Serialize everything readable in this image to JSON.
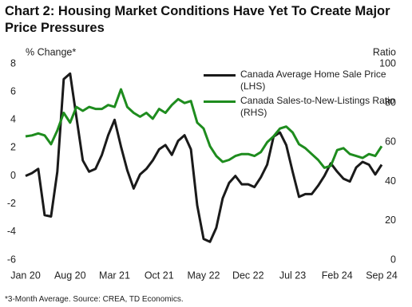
{
  "chart_data": {
    "type": "line",
    "title": "Chart 2: Housing Market Conditions Have Yet To Create Major Price Pressures",
    "ylabel": "% Change*",
    "y2label": "Ratio",
    "footnote": "*3-Month Average.  Source: CREA, TD Economics.",
    "categories": [
      "Jan 20",
      null,
      null,
      null,
      null,
      null,
      null,
      "Aug 20",
      null,
      null,
      null,
      null,
      null,
      null,
      "Mar 21",
      null,
      null,
      null,
      null,
      null,
      null,
      "Oct 21",
      null,
      null,
      null,
      null,
      null,
      null,
      "May 22",
      null,
      null,
      null,
      null,
      null,
      null,
      "Dec 22",
      null,
      null,
      null,
      null,
      null,
      null,
      "Jul 23",
      null,
      null,
      null,
      null,
      null,
      null,
      "Feb 24",
      null,
      null,
      null,
      null,
      null,
      null,
      "Sep 24"
    ],
    "ylim": [
      -6,
      8
    ],
    "yticks": [
      -6,
      -4,
      -2,
      0,
      2,
      4,
      6,
      8
    ],
    "y2lim": [
      0,
      100
    ],
    "y2ticks": [
      0,
      20,
      40,
      60,
      80,
      100
    ],
    "series": [
      {
        "name": "Canada Average Home Sale Price (LHS)",
        "color": "#1a1a1a",
        "values": [
          0,
          0.2,
          0.5,
          -2.8,
          -2.9,
          0.3,
          6.9,
          7.3,
          4.2,
          1.1,
          0.3,
          0.5,
          1.5,
          2.9,
          4.0,
          2.1,
          0.4,
          -0.9,
          0.1,
          0.5,
          1.1,
          1.9,
          2.2,
          1.5,
          2.5,
          2.9,
          1.9,
          -2.1,
          -4.5,
          -4.7,
          -3.7,
          -1.6,
          -0.5,
          0,
          -0.6,
          -0.6,
          -0.8,
          -0.1,
          0.8,
          2.8,
          3.1,
          2.2,
          0.3,
          -1.5,
          -1.3,
          -1.3,
          -0.7,
          0,
          0.9,
          0.3,
          -0.2,
          -0.4,
          0.6,
          1.0,
          0.8,
          0.1,
          0.8
        ]
      },
      {
        "name": "Canada Sales-to-New-Listings Ratio (RHS)",
        "color": "#1e8c1e",
        "axis": "y2",
        "values": [
          63,
          63.5,
          64.5,
          63.5,
          59,
          66,
          75,
          70,
          78,
          76,
          78,
          77,
          77,
          79,
          78,
          87,
          78,
          75,
          73,
          75,
          72,
          77,
          75,
          79,
          82,
          80,
          81,
          70,
          67,
          58,
          53,
          50,
          51,
          53,
          54,
          54,
          53,
          55,
          60,
          63,
          67,
          68,
          65,
          59,
          57,
          54,
          51,
          47,
          48,
          56,
          57,
          54,
          53,
          52,
          54,
          53,
          58
        ]
      }
    ]
  }
}
